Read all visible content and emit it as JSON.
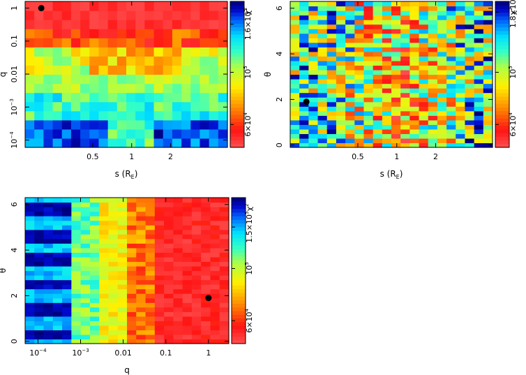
{
  "chart_data": [
    {
      "type": "heatmap",
      "id": "s-q",
      "title": "",
      "xlabel": "s (R_E)",
      "ylabel": "q",
      "x_scale": "log",
      "y_scale": "log",
      "xlim": [
        0.15,
        5.5
      ],
      "ylim": [
        6e-05,
        1.6
      ],
      "x_ticks": [
        {
          "v": 0.5,
          "label": "0.5"
        },
        {
          "v": 1,
          "label": "1"
        },
        {
          "v": 2,
          "label": "2"
        }
      ],
      "y_ticks": [
        {
          "v": 0.0001,
          "label": "10",
          "exp": "−4"
        },
        {
          "v": 0.001,
          "label": "10",
          "exp": "−3"
        },
        {
          "v": 0.01,
          "label": "0.01"
        },
        {
          "v": 0.1,
          "label": "0.1"
        },
        {
          "v": 1,
          "label": "1"
        }
      ],
      "colorbar": {
        "label": "χ",
        "label_sup": "2",
        "scale": "log",
        "range": [
          48000,
          200000
        ],
        "ticks": [
          {
            "v": 60000,
            "label": "6×10",
            "exp": "4"
          },
          {
            "v": 100000,
            "label": "10",
            "exp": "5"
          },
          {
            "v": 160000,
            "label": "1.6×10",
            "exp": "5"
          }
        ]
      },
      "best_fit": {
        "x": 0.2,
        "y": 1.0
      },
      "z_pattern": "low chi2 (red) for q above ~0.03; green band near q 0.002-0.02; blue/high chi2 for q below ~0.0003"
    },
    {
      "type": "heatmap",
      "id": "s-theta",
      "title": "",
      "xlabel": "s (R_E)",
      "ylabel": "θ",
      "x_scale": "log",
      "y_scale": "linear",
      "xlim": [
        0.15,
        5.5
      ],
      "ylim": [
        -0.1,
        6.3
      ],
      "x_ticks": [
        {
          "v": 0.5,
          "label": "0.5"
        },
        {
          "v": 1,
          "label": "1"
        },
        {
          "v": 2,
          "label": "2"
        }
      ],
      "y_ticks": [
        {
          "v": 0,
          "label": "0"
        },
        {
          "v": 2,
          "label": "2"
        },
        {
          "v": 4,
          "label": "4"
        },
        {
          "v": 6,
          "label": "6"
        }
      ],
      "colorbar": {
        "label": "χ",
        "label_sup": "2",
        "scale": "log",
        "range": [
          48000,
          200000
        ],
        "ticks": [
          {
            "v": 60000,
            "label": "6×10",
            "exp": "4"
          },
          {
            "v": 100000,
            "label": "10",
            "exp": "5"
          },
          {
            "v": 180000,
            "label": "1.8×10",
            "exp": "5"
          }
        ]
      },
      "best_fit": {
        "x": 0.2,
        "y": 1.9
      },
      "z_pattern": "noisy mixture; reddest near s 0.7-1.5 across all theta"
    },
    {
      "type": "heatmap",
      "id": "q-theta",
      "title": "",
      "xlabel": "q",
      "ylabel": "θ",
      "x_scale": "log",
      "y_scale": "linear",
      "xlim": [
        5e-05,
        3
      ],
      "ylim": [
        -0.1,
        6.3
      ],
      "x_ticks": [
        {
          "v": 0.0001,
          "label": "10",
          "exp": "−4"
        },
        {
          "v": 0.001,
          "label": "10",
          "exp": "−3"
        },
        {
          "v": 0.01,
          "label": "0.01"
        },
        {
          "v": 0.1,
          "label": "0.1"
        },
        {
          "v": 1,
          "label": "1"
        }
      ],
      "y_ticks": [
        {
          "v": 0,
          "label": "0"
        },
        {
          "v": 2,
          "label": "2"
        },
        {
          "v": 4,
          "label": "4"
        },
        {
          "v": 6,
          "label": "6"
        }
      ],
      "colorbar": {
        "label": "χ",
        "label_sup": "2",
        "scale": "log",
        "range": [
          48000,
          200000
        ],
        "ticks": [
          {
            "v": 60000,
            "label": "6×10",
            "exp": "4"
          },
          {
            "v": 100000,
            "label": "10",
            "exp": "5"
          },
          {
            "v": 150000,
            "label": "1.5×10",
            "exp": "5"
          }
        ]
      },
      "best_fit": {
        "x": 1.0,
        "y": 1.9
      },
      "z_pattern": "blue/high chi2 at q below ~0.0005 with theta-dependent stripes; yellow near q ~0.005; red for q above ~0.03"
    }
  ]
}
